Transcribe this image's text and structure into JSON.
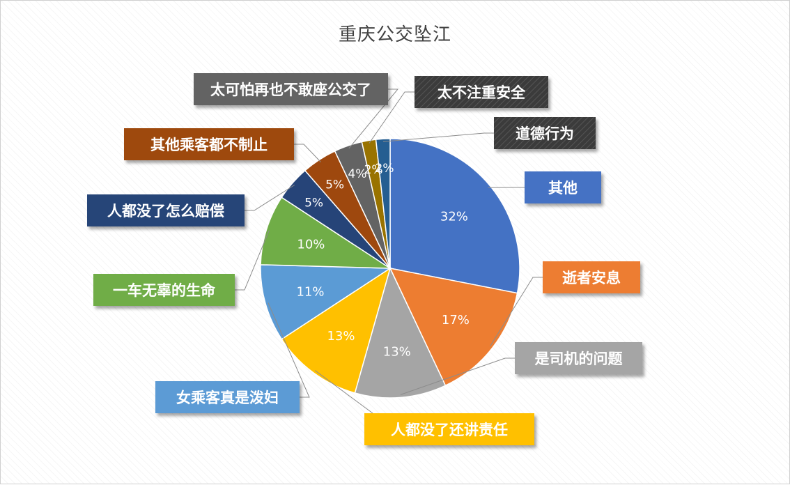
{
  "chart_data": {
    "type": "pie",
    "title": "重庆公交坠江",
    "slices": [
      {
        "label": "其他",
        "value": 32,
        "display": "32%",
        "color": "#4472C4"
      },
      {
        "label": "逝者安息",
        "value": 17,
        "display": "17%",
        "color": "#ED7D31"
      },
      {
        "label": "是司机的问题",
        "value": 13,
        "display": "13%",
        "color": "#A5A5A5"
      },
      {
        "label": "人都没了还讲责任",
        "value": 13,
        "display": "13%",
        "color": "#FFC000"
      },
      {
        "label": "女乘客真是泼妇",
        "value": 11,
        "display": "11%",
        "color": "#5B9BD5"
      },
      {
        "label": "一车无辜的生命",
        "value": 10,
        "display": "10%",
        "color": "#70AD47"
      },
      {
        "label": "人都没了怎么赔偿",
        "value": 5,
        "display": "5%",
        "color": "#264478"
      },
      {
        "label": "其他乘客都不制止",
        "value": 5,
        "display": "5%",
        "color": "#9E480E"
      },
      {
        "label": "太可怕再也不敢座公交了",
        "value": 4,
        "display": "4%",
        "color": "#636363"
      },
      {
        "label": "太不注重安全",
        "value": 2,
        "display": "2%",
        "color": "#997300"
      },
      {
        "label": "道德行为",
        "value": 2,
        "display": "2%",
        "color": "#255E91"
      }
    ]
  }
}
